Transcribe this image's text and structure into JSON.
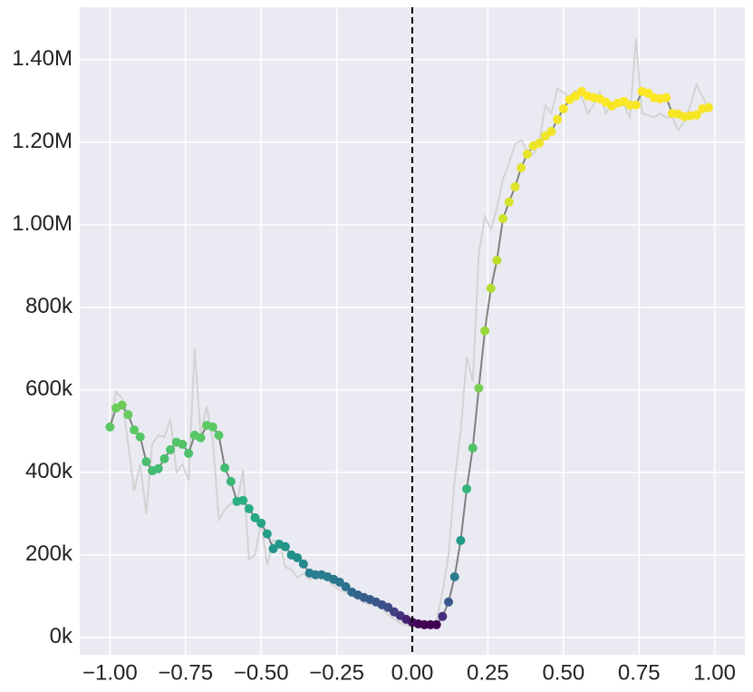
{
  "chart_data": {
    "type": "line",
    "x": [
      -1,
      -0.98,
      -0.96,
      -0.94,
      -0.92,
      -0.9,
      -0.88,
      -0.86,
      -0.84,
      -0.82,
      -0.8,
      -0.78,
      -0.76,
      -0.74,
      -0.72,
      -0.7,
      -0.68,
      -0.66,
      -0.64,
      -0.62,
      -0.6,
      -0.58,
      -0.56,
      -0.54,
      -0.52,
      -0.5,
      -0.48,
      -0.46,
      -0.44,
      -0.42,
      -0.4,
      -0.38,
      -0.36,
      -0.34,
      -0.32,
      -0.3,
      -0.28,
      -0.26,
      -0.24,
      -0.22,
      -0.2,
      -0.18,
      -0.16,
      -0.14,
      -0.12,
      -0.1,
      -0.08,
      -0.06,
      -0.04,
      -0.02,
      0,
      0.02,
      0.04,
      0.06,
      0.08,
      0.1,
      0.12,
      0.14,
      0.16,
      0.18,
      0.2,
      0.22,
      0.24,
      0.26,
      0.28,
      0.3,
      0.32,
      0.34,
      0.36,
      0.38,
      0.4,
      0.42,
      0.44,
      0.46,
      0.48,
      0.5,
      0.52,
      0.54,
      0.56,
      0.58,
      0.6,
      0.62,
      0.64,
      0.66,
      0.68,
      0.7,
      0.72,
      0.74,
      0.76,
      0.78,
      0.8,
      0.82,
      0.84,
      0.86,
      0.88,
      0.9,
      0.92,
      0.94,
      0.96,
      0.98
    ],
    "series": [
      {
        "color": "#d3d3d3",
        "markers": false,
        "values": [
          510000,
          595000,
          580000,
          470000,
          355000,
          420000,
          300000,
          470000,
          490000,
          485000,
          530000,
          400000,
          420000,
          380000,
          700000,
          490000,
          560000,
          480000,
          285000,
          310000,
          325000,
          320000,
          405000,
          190000,
          200000,
          280000,
          175000,
          235000,
          235000,
          170000,
          165000,
          145000,
          155000,
          140000,
          150000,
          160000,
          140000,
          125000,
          115000,
          110000,
          100000,
          95000,
          85000,
          80000,
          85000,
          70000,
          55000,
          45000,
          35000,
          30000,
          25000,
          30000,
          30000,
          25000,
          40000,
          110000,
          200000,
          380000,
          500000,
          680000,
          620000,
          930000,
          1020000,
          990000,
          1040000,
          1110000,
          1150000,
          1195000,
          1205000,
          1180000,
          1170000,
          1200000,
          1290000,
          1270000,
          1330000,
          1320000,
          1310000,
          1325000,
          1310000,
          1270000,
          1290000,
          1320000,
          1270000,
          1295000,
          1290000,
          1290000,
          1260000,
          1450000,
          1270000,
          1265000,
          1260000,
          1270000,
          1260000,
          1260000,
          1230000,
          1250000,
          1290000,
          1340000,
          1310000,
          1280000
        ]
      },
      {
        "color": "#808080",
        "markers": true,
        "colormap": "viridis",
        "color_norm": "log",
        "values": [
          510000,
          556000,
          563000,
          540000,
          503000,
          486000,
          426000,
          404000,
          409000,
          433000,
          455000,
          473000,
          468000,
          446000,
          490000,
          484000,
          514000,
          510000,
          490000,
          411000,
          378000,
          330000,
          332000,
          312000,
          290000,
          277000,
          251000,
          215000,
          226000,
          220000,
          200000,
          193000,
          178000,
          156000,
          152000,
          152000,
          147000,
          141000,
          134000,
          123000,
          110000,
          103000,
          97000,
          92000,
          86000,
          79000,
          73000,
          62000,
          53000,
          44000,
          37000,
          33000,
          31000,
          31000,
          31000,
          51000,
          86000,
          147000,
          235000,
          360000,
          459000,
          604000,
          743000,
          846000,
          914000,
          1015000,
          1055000,
          1092000,
          1138000,
          1171000,
          1191000,
          1198000,
          1215000,
          1226000,
          1255000,
          1281000,
          1303000,
          1312000,
          1323000,
          1312000,
          1308000,
          1305000,
          1297000,
          1288000,
          1295000,
          1299000,
          1290000,
          1290000,
          1323000,
          1319000,
          1308000,
          1305000,
          1308000,
          1270000,
          1268000,
          1262000,
          1264000,
          1266000,
          1281000,
          1284000
        ]
      }
    ],
    "xlim": [
      -1.1,
      1.1
    ],
    "xticks": [
      {
        "value": -1,
        "label": "−1.00"
      },
      {
        "value": -0.75,
        "label": "−0.75"
      },
      {
        "value": -0.5,
        "label": "−0.50"
      },
      {
        "value": -0.25,
        "label": "−0.25"
      },
      {
        "value": 0,
        "label": "0.00"
      },
      {
        "value": 0.25,
        "label": "0.25"
      },
      {
        "value": 0.5,
        "label": "0.50"
      },
      {
        "value": 0.75,
        "label": "0.75"
      },
      {
        "value": 1,
        "label": "1.00"
      }
    ],
    "ylim": [
      -42000,
      1527000
    ],
    "yticks": [
      {
        "value": 0,
        "label": "0k"
      },
      {
        "value": 200000,
        "label": "200k"
      },
      {
        "value": 400000,
        "label": "400k"
      },
      {
        "value": 600000,
        "label": "600k"
      },
      {
        "value": 800000,
        "label": "800k"
      },
      {
        "value": 1000000,
        "label": "1.00M"
      },
      {
        "value": 1200000,
        "label": "1.20M"
      },
      {
        "value": 1400000,
        "label": "1.40M"
      }
    ],
    "grid": true,
    "vline": {
      "x": 0,
      "color": "#000000",
      "dashed": true
    }
  }
}
